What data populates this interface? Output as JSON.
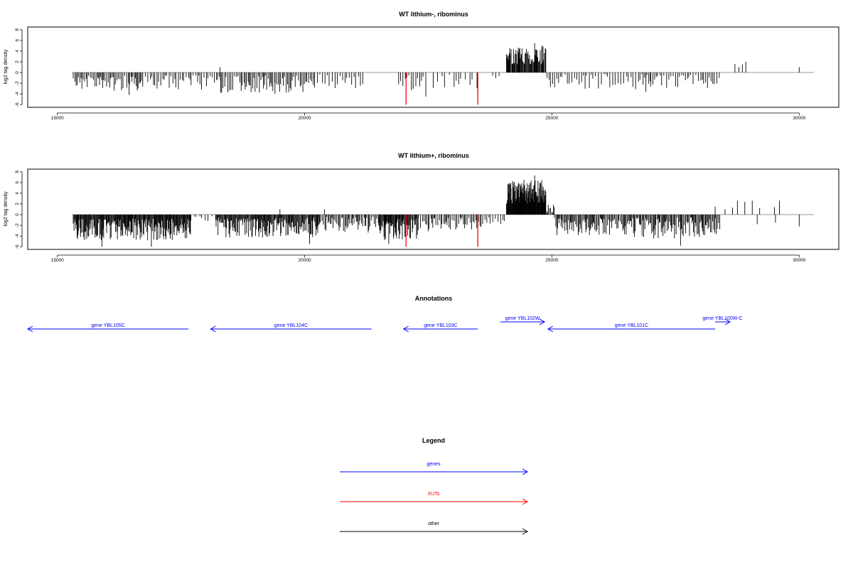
{
  "colors": {
    "track": "#000000",
    "xut": "#ff0000",
    "baseline": "#999999",
    "gene": "#0000ff",
    "other": "#000000"
  },
  "chart_data": [
    {
      "type": "bar",
      "title": "WT lithium-, ribominus",
      "ylabel": "log2 tag density",
      "xlim": [
        14400,
        30800
      ],
      "ylim": [
        -6.5,
        8.5
      ],
      "x_ticks": [
        15000,
        20000,
        25000,
        30000
      ],
      "y_ticks": [
        -6,
        -4,
        -2,
        0,
        2,
        4,
        6,
        8
      ],
      "baseline_range": [
        15300,
        30300
      ],
      "density_regions": [
        {
          "start": 15320,
          "end": 16700,
          "sign": -1,
          "min": 0.6,
          "max": 3.4,
          "step": 28
        },
        {
          "start": 16700,
          "end": 18300,
          "sign": -1,
          "min": 0.5,
          "max": 3.2,
          "step": 38
        },
        {
          "start": 18300,
          "end": 20200,
          "sign": -1,
          "min": 0.6,
          "max": 3.8,
          "step": 28
        },
        {
          "start": 20200,
          "end": 21200,
          "sign": -1,
          "min": 0.4,
          "max": 3.0,
          "step": 45
        },
        {
          "start": 21900,
          "end": 22400,
          "sign": -1,
          "min": 0.5,
          "max": 3.6,
          "step": 45
        },
        {
          "start": 22600,
          "end": 23500,
          "sign": -1,
          "min": 0.4,
          "max": 3.0,
          "step": 70
        },
        {
          "start": 23800,
          "end": 24000,
          "sign": -1,
          "min": 0.3,
          "max": 1.2,
          "step": 80
        },
        {
          "start": 24080,
          "end": 24880,
          "sign": 1,
          "min": 1.5,
          "max": 5.0,
          "step": 13
        },
        {
          "start": 24900,
          "end": 25200,
          "sign": -1,
          "min": 0.4,
          "max": 3.0,
          "step": 35
        },
        {
          "start": 25200,
          "end": 27000,
          "sign": -1,
          "min": 0.3,
          "max": 3.2,
          "step": 45
        },
        {
          "start": 27000,
          "end": 28400,
          "sign": -1,
          "min": 0.4,
          "max": 3.0,
          "step": 40
        }
      ],
      "peaks": [
        {
          "x": 18290,
          "y": 1.0
        },
        {
          "x": 28700,
          "y": 1.6
        },
        {
          "x": 28780,
          "y": 1.0
        },
        {
          "x": 28850,
          "y": 1.5
        },
        {
          "x": 28920,
          "y": 2.0
        },
        {
          "x": 30000,
          "y": 1.0
        },
        {
          "x": 24650,
          "y": 5.5
        },
        {
          "x": 24800,
          "y": 5.0
        },
        {
          "x": 24350,
          "y": 4.6
        },
        {
          "x": 16450,
          "y": -4.2
        },
        {
          "x": 19400,
          "y": -4.0
        },
        {
          "x": 22450,
          "y": -4.5
        },
        {
          "x": 26900,
          "y": -3.6
        }
      ],
      "xut_bars": [
        {
          "x": 22050,
          "y": -6.0
        },
        {
          "x": 23500,
          "y": -6.0
        }
      ]
    },
    {
      "type": "bar",
      "title": "WT lithium+, ribominus",
      "ylabel": "log2 tag density",
      "xlim": [
        14400,
        30800
      ],
      "ylim": [
        -6.5,
        8.5
      ],
      "x_ticks": [
        15000,
        20000,
        25000,
        30000
      ],
      "y_ticks": [
        -6,
        -4,
        -2,
        0,
        2,
        4,
        6,
        8
      ],
      "baseline_range": [
        15300,
        30300
      ],
      "density_regions": [
        {
          "start": 15320,
          "end": 17700,
          "sign": -1,
          "min": 0.8,
          "max": 4.8,
          "step": 12
        },
        {
          "start": 17700,
          "end": 18200,
          "sign": -1,
          "min": 0.3,
          "max": 1.5,
          "step": 60
        },
        {
          "start": 18200,
          "end": 20300,
          "sign": -1,
          "min": 0.6,
          "max": 4.4,
          "step": 14
        },
        {
          "start": 20300,
          "end": 21500,
          "sign": -1,
          "min": 0.4,
          "max": 3.4,
          "step": 24
        },
        {
          "start": 21500,
          "end": 22300,
          "sign": -1,
          "min": 0.8,
          "max": 4.8,
          "step": 14
        },
        {
          "start": 22300,
          "end": 23600,
          "sign": -1,
          "min": 0.5,
          "max": 3.4,
          "step": 30
        },
        {
          "start": 23600,
          "end": 24050,
          "sign": -1,
          "min": 0.3,
          "max": 2.0,
          "step": 45
        },
        {
          "start": 24080,
          "end": 24880,
          "sign": 1,
          "min": 2.0,
          "max": 6.6,
          "step": 8
        },
        {
          "start": 24880,
          "end": 25050,
          "sign": 1,
          "min": 0.3,
          "max": 2.0,
          "step": 20
        },
        {
          "start": 25050,
          "end": 26500,
          "sign": -1,
          "min": 0.5,
          "max": 4.0,
          "step": 20
        },
        {
          "start": 26500,
          "end": 28400,
          "sign": -1,
          "min": 0.5,
          "max": 4.5,
          "step": 18
        }
      ],
      "peaks": [
        {
          "x": 19500,
          "y": 1.0
        },
        {
          "x": 20400,
          "y": 1.0
        },
        {
          "x": 24650,
          "y": 7.3
        },
        {
          "x": 28300,
          "y": 1.5
        },
        {
          "x": 28500,
          "y": 1.0
        },
        {
          "x": 28650,
          "y": 1.3
        },
        {
          "x": 28750,
          "y": 2.6
        },
        {
          "x": 28900,
          "y": 2.4
        },
        {
          "x": 29050,
          "y": 2.6
        },
        {
          "x": 29200,
          "y": 1.2
        },
        {
          "x": 29500,
          "y": 1.4
        },
        {
          "x": 29600,
          "y": 2.6
        },
        {
          "x": 29150,
          "y": -1.8
        },
        {
          "x": 29520,
          "y": -1.5
        },
        {
          "x": 30000,
          "y": -2.2
        },
        {
          "x": 15900,
          "y": -6.0
        },
        {
          "x": 16900,
          "y": -6.0
        },
        {
          "x": 27600,
          "y": -5.8
        },
        {
          "x": 20100,
          "y": -5.5
        },
        {
          "x": 21700,
          "y": -5.5
        }
      ],
      "xut_bars": [
        {
          "x": 22050,
          "y": -6.0
        },
        {
          "x": 23500,
          "y": -6.0
        }
      ]
    }
  ],
  "annotations": {
    "title": "Annotations",
    "genes": [
      {
        "label": "gene YBL105C",
        "start": 14400,
        "end": 17650,
        "strand": "-",
        "row": 0
      },
      {
        "label": "gene YBL104C",
        "start": 18100,
        "end": 21350,
        "strand": "-",
        "row": 0
      },
      {
        "label": "gene YBL103C",
        "start": 22000,
        "end": 23500,
        "strand": "-",
        "row": 0
      },
      {
        "label": "gene YBL102W",
        "start": 23960,
        "end": 24850,
        "strand": "+",
        "row": 1
      },
      {
        "label": "gene YBL101C",
        "start": 24920,
        "end": 28300,
        "strand": "-",
        "row": 0
      },
      {
        "label": "gene YBL100W-C",
        "start": 28300,
        "end": 28600,
        "strand": "+",
        "row": 1
      }
    ]
  },
  "legend": {
    "title": "Legend",
    "items": [
      {
        "label": "genes",
        "color": "#0000ff"
      },
      {
        "label": "XUTs",
        "color": "#ff0000"
      },
      {
        "label": "other",
        "color": "#000000"
      }
    ]
  }
}
